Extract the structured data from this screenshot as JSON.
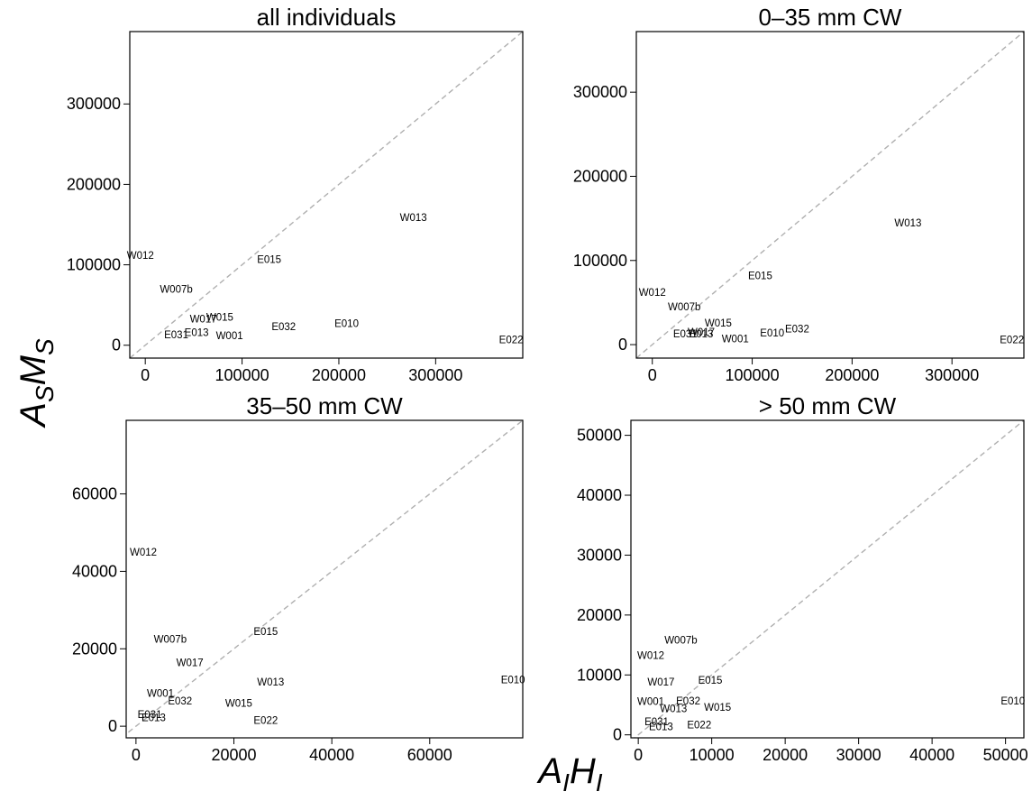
{
  "chart_data": [
    {
      "type": "scatter",
      "title": "all individuals",
      "xlim": [
        -16000,
        390000
      ],
      "ylim": [
        -16000,
        390000
      ],
      "xticks": [
        0,
        100000,
        200000,
        300000
      ],
      "yticks": [
        0,
        100000,
        200000,
        300000
      ],
      "reference_line": "y = x (dashed grey)",
      "points": [
        {
          "label": "W012",
          "x": -5000,
          "y": 112000
        },
        {
          "label": "E015",
          "x": 128000,
          "y": 107000
        },
        {
          "label": "W013",
          "x": 277000,
          "y": 159000
        },
        {
          "label": "W007b",
          "x": 32000,
          "y": 70000
        },
        {
          "label": "W015",
          "x": 77000,
          "y": 35000
        },
        {
          "label": "W017",
          "x": 60000,
          "y": 33000
        },
        {
          "label": "E032",
          "x": 143000,
          "y": 23000
        },
        {
          "label": "E010",
          "x": 208000,
          "y": 27000
        },
        {
          "label": "E031",
          "x": 32000,
          "y": 13000
        },
        {
          "label": "E013",
          "x": 53000,
          "y": 16000
        },
        {
          "label": "W001",
          "x": 87000,
          "y": 12000
        },
        {
          "label": "E022",
          "x": 378000,
          "y": 7000
        }
      ]
    },
    {
      "type": "scatter",
      "title": "0–35 mm CW",
      "xlim": [
        -16000,
        372000
      ],
      "ylim": [
        -16000,
        372000
      ],
      "xticks": [
        0,
        100000,
        200000,
        300000
      ],
      "yticks": [
        0,
        100000,
        200000,
        300000
      ],
      "reference_line": "y = x (dashed grey)",
      "points": [
        {
          "label": "W012",
          "x": 0,
          "y": 62000
        },
        {
          "label": "E015",
          "x": 108000,
          "y": 82000
        },
        {
          "label": "W013",
          "x": 256000,
          "y": 145000
        },
        {
          "label": "W007b",
          "x": 32000,
          "y": 45000
        },
        {
          "label": "W015",
          "x": 66000,
          "y": 26000
        },
        {
          "label": "E032",
          "x": 145000,
          "y": 19000
        },
        {
          "label": "E010",
          "x": 120000,
          "y": 14000
        },
        {
          "label": "E031",
          "x": 33000,
          "y": 13000
        },
        {
          "label": "W017",
          "x": 49000,
          "y": 15000
        },
        {
          "label": "E013",
          "x": 49000,
          "y": 13000
        },
        {
          "label": "W001",
          "x": 83000,
          "y": 7000
        },
        {
          "label": "E022",
          "x": 360000,
          "y": 6000
        }
      ]
    },
    {
      "type": "scatter",
      "title": "35–50 mm CW",
      "xlim": [
        -2000,
        79000
      ],
      "ylim": [
        -3000,
        79000
      ],
      "xticks": [
        0,
        20000,
        40000,
        60000
      ],
      "yticks": [
        0,
        20000,
        40000,
        60000
      ],
      "reference_line": "y = x (dashed grey)",
      "points": [
        {
          "label": "W012",
          "x": 1500,
          "y": 45000
        },
        {
          "label": "E015",
          "x": 26500,
          "y": 24500
        },
        {
          "label": "W007b",
          "x": 7000,
          "y": 22500
        },
        {
          "label": "W017",
          "x": 11000,
          "y": 16500
        },
        {
          "label": "W013",
          "x": 27500,
          "y": 11500
        },
        {
          "label": "E010",
          "x": 77000,
          "y": 12000
        },
        {
          "label": "W001",
          "x": 5000,
          "y": 8500
        },
        {
          "label": "E032",
          "x": 9000,
          "y": 6500
        },
        {
          "label": "W015",
          "x": 21000,
          "y": 6000
        },
        {
          "label": "E031",
          "x": 2800,
          "y": 3000
        },
        {
          "label": "E013",
          "x": 3600,
          "y": 2200
        },
        {
          "label": "E022",
          "x": 26500,
          "y": 1500
        }
      ]
    },
    {
      "type": "scatter",
      "title": "> 50 mm CW",
      "xlim": [
        -1000,
        52500
      ],
      "ylim": [
        -500,
        52500
      ],
      "xticks": [
        0,
        10000,
        20000,
        30000,
        40000,
        50000
      ],
      "yticks": [
        0,
        10000,
        20000,
        30000,
        40000,
        50000
      ],
      "reference_line": "y = x (dashed grey)",
      "points": [
        {
          "label": "W007b",
          "x": 5800,
          "y": 15800
        },
        {
          "label": "W012",
          "x": 1700,
          "y": 13300
        },
        {
          "label": "W017",
          "x": 3100,
          "y": 8800
        },
        {
          "label": "E015",
          "x": 9800,
          "y": 9100
        },
        {
          "label": "W001",
          "x": 1700,
          "y": 5600
        },
        {
          "label": "E032",
          "x": 6800,
          "y": 5700
        },
        {
          "label": "W013",
          "x": 4800,
          "y": 4400
        },
        {
          "label": "W015",
          "x": 10800,
          "y": 4600
        },
        {
          "label": "E010",
          "x": 51000,
          "y": 5700
        },
        {
          "label": "E031",
          "x": 2500,
          "y": 2200
        },
        {
          "label": "E013",
          "x": 3100,
          "y": 1400
        },
        {
          "label": "E022",
          "x": 8300,
          "y": 1700
        }
      ]
    }
  ],
  "axis_labels": {
    "y": {
      "a": "A",
      "a_sub": "S",
      "b": "M",
      "b_sub": "S"
    },
    "x": {
      "a": "A",
      "a_sub": "I",
      "b": "H",
      "b_sub": "I"
    }
  }
}
